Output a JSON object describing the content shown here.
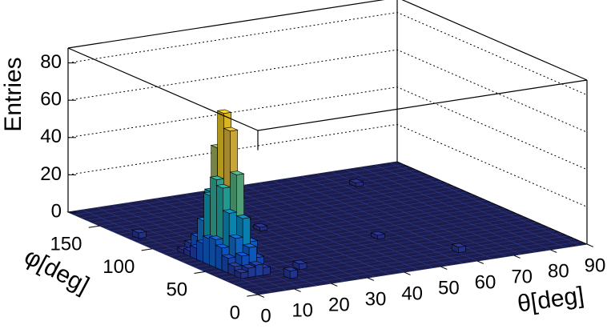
{
  "chart_data": {
    "type": "lego",
    "z_title": "Entries",
    "y_title": "φ[deg]",
    "x_title": "θ[deg]",
    "bin_width": [
      2,
      6
    ],
    "x": [
      4,
      4,
      4,
      4,
      4,
      4,
      4,
      4,
      4,
      4,
      6,
      6,
      6,
      6,
      6,
      6,
      6,
      6,
      6,
      6,
      8,
      8,
      8,
      8,
      8,
      8,
      8,
      8,
      8,
      8,
      10,
      10,
      10,
      10,
      10,
      10,
      10,
      10,
      10,
      10,
      20,
      30,
      50,
      70,
      60,
      14,
      2
    ],
    "y": [
      30,
      36,
      42,
      48,
      54,
      60,
      66,
      72,
      78,
      84,
      30,
      36,
      42,
      48,
      54,
      60,
      66,
      72,
      78,
      84,
      30,
      36,
      42,
      48,
      54,
      60,
      66,
      72,
      78,
      84,
      30,
      36,
      42,
      48,
      54,
      60,
      66,
      72,
      78,
      84,
      30,
      102,
      60,
      150,
      18,
      18,
      120
    ],
    "values": [
      3,
      5,
      8,
      12,
      15,
      14,
      10,
      6,
      3,
      2,
      5,
      10,
      18,
      30,
      42,
      45,
      35,
      20,
      10,
      5,
      6,
      14,
      28,
      50,
      72,
      80,
      60,
      35,
      15,
      6,
      4,
      8,
      15,
      25,
      35,
      38,
      28,
      15,
      8,
      3,
      3,
      2,
      2,
      2,
      3,
      4,
      3
    ],
    "xlim": [
      0,
      90
    ],
    "ylim": [
      0,
      180
    ],
    "zlim": [
      0,
      88
    ],
    "xticks": [
      0,
      10,
      20,
      30,
      40,
      50,
      60,
      70,
      80,
      90
    ],
    "yticks": [
      0,
      50,
      100,
      150
    ],
    "zticks": [
      0,
      20,
      40,
      60,
      80
    ],
    "grid": true,
    "floor_color": "#1c1d4e",
    "palette": [
      "#352a87",
      "#0f5cdd",
      "#1481d6",
      "#06a4ca",
      "#2eb7a4",
      "#87bf77",
      "#d1bb59",
      "#fec832",
      "#f9fb0e"
    ]
  }
}
